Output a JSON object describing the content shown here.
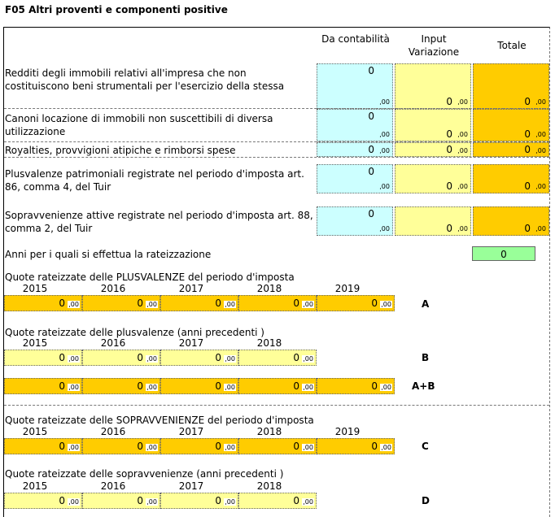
{
  "title": "F05 Altri proventi e componenti positive",
  "headers": {
    "col1": "Da contabilità",
    "col2": "Input Variazione",
    "col3": "Totale"
  },
  "rows": [
    {
      "label": "Redditi degli immobili relativi all'impresa che non costituiscono beni strumentali per l'esercizio della stessa",
      "contab": "0",
      "contab_dec": ",00",
      "input": "0",
      "input_dec": ",00",
      "totale": "0",
      "totale_dec": ",00"
    },
    {
      "label": "Canoni locazione di immobili non suscettibili di diversa utilizzazione",
      "contab": "0",
      "contab_dec": ",00",
      "input": "0",
      "input_dec": ",00",
      "totale": "0",
      "totale_dec": ",00"
    },
    {
      "label": "Royalties, provvigioni atipiche e rimborsi spese",
      "contab": "0",
      "contab_dec": ",00",
      "input": "0",
      "input_dec": ",00",
      "totale": "0",
      "totale_dec": ",00"
    },
    {
      "label": "Plusvalenze patrimoniali registrate nel periodo d'imposta art. 86, comma 4, del Tuir",
      "contab": "0",
      "contab_dec": ",00",
      "input": "0",
      "input_dec": ",00",
      "totale": "0",
      "totale_dec": ",00"
    },
    {
      "label": "Sopravvenienze attive registrate nel periodo d'imposta art. 88, comma 2, del Tuir",
      "contab": "0",
      "contab_dec": ",00",
      "input": "0",
      "input_dec": ",00",
      "totale": "0",
      "totale_dec": ",00"
    }
  ],
  "anni": {
    "label": "Anni per i quali si effettua la rateizzazione",
    "value": "0"
  },
  "sections": {
    "plus_curr": {
      "label": "Quote rateizzate delle PLUSVALENZE del periodo d'imposta",
      "years": [
        "2015",
        "2016",
        "2017",
        "2018",
        "2019"
      ],
      "values": [
        "0",
        "0",
        "0",
        "0",
        "0"
      ],
      "dec": ",00",
      "letter": "A"
    },
    "plus_prev": {
      "label": "Quote rateizzate delle plusvalenze  (anni precedenti )",
      "years": [
        "2015",
        "2016",
        "2017",
        "2018"
      ],
      "values": [
        "0",
        "0",
        "0",
        "0"
      ],
      "dec": ",00",
      "letter": "B"
    },
    "plus_sum": {
      "values": [
        "0",
        "0",
        "0",
        "0",
        "0"
      ],
      "dec": ",00",
      "letter": "A+B"
    },
    "sopr_curr": {
      "label": "Quote rateizzate delle SOPRAVVENIENZE del periodo d'imposta",
      "years": [
        "2015",
        "2016",
        "2017",
        "2018",
        "2019"
      ],
      "values": [
        "0",
        "0",
        "0",
        "0",
        "0"
      ],
      "dec": ",00",
      "letter": "C"
    },
    "sopr_prev": {
      "label": "Quote rateizzate delle sopravvenienze  (anni precedenti )",
      "years": [
        "2015",
        "2016",
        "2017",
        "2018"
      ],
      "values": [
        "0",
        "0",
        "0",
        "0"
      ],
      "dec": ",00",
      "letter": "D"
    }
  },
  "colors": {
    "cyan": "#ccffff",
    "yellow": "#ffff99",
    "orange": "#ffcc00",
    "green": "#99ff99"
  }
}
